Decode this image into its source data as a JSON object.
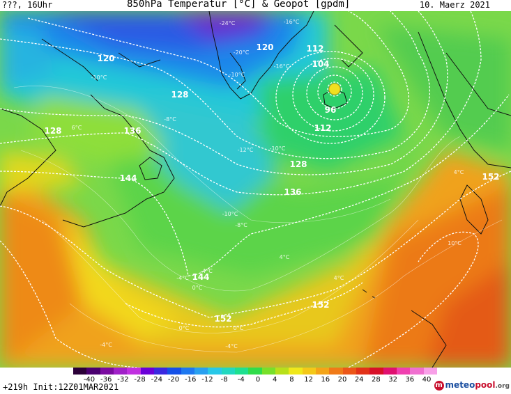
{
  "header": {
    "left": "???, 16Uhr",
    "title": "850hPa Temperatur [°C] & Geopot [gpdm]",
    "date": "10. Maerz 2021"
  },
  "footer": {
    "run_info": "+219h Init:12Z01MAR2021",
    "logo_brand": "meteo",
    "logo_pool": "pool",
    "logo_tld": ".org"
  },
  "colors": {
    "sea_cold": "#2a7fd8",
    "arctic": "#5a2bc8",
    "cool_green": "#3cc84a",
    "warm_orange": "#f09a1a",
    "hot_red": "#e2561a",
    "isohypse": "#ffffff",
    "coastline": "#111111"
  },
  "scale": {
    "labels": [
      "-40",
      "-36",
      "-32",
      "-28",
      "-24",
      "-20",
      "-16",
      "-12",
      "-8",
      "-4",
      "0",
      "4",
      "8",
      "12",
      "16",
      "20",
      "24",
      "28",
      "32",
      "36",
      "40"
    ],
    "colors": [
      "#2b0038",
      "#4a0070",
      "#7a0aa0",
      "#a020c8",
      "#c030e0",
      "#6a00d8",
      "#3a28e0",
      "#1450e8",
      "#1e78f0",
      "#28a0f0",
      "#28c8e8",
      "#22d8c0",
      "#1ee090",
      "#30dc4a",
      "#78e02a",
      "#b8e01a",
      "#f0e81a",
      "#f4c818",
      "#f4a418",
      "#f07a18",
      "#ec5618",
      "#e23218",
      "#d81028",
      "#e01070",
      "#f040b0",
      "#f070d0",
      "#f8a0e8"
    ]
  },
  "map": {
    "geopot_labels": [
      {
        "text": "120"
      },
      {
        "text": "120"
      },
      {
        "text": "112"
      },
      {
        "text": "104"
      },
      {
        "text": "96"
      },
      {
        "text": "128"
      },
      {
        "text": "112"
      },
      {
        "text": "128"
      },
      {
        "text": "136"
      },
      {
        "text": "144"
      },
      {
        "text": "136"
      },
      {
        "text": "128"
      },
      {
        "text": "152"
      },
      {
        "text": "144"
      },
      {
        "text": "152"
      },
      {
        "text": "152"
      }
    ],
    "temp_labels": [
      {
        "text": "-24°C"
      },
      {
        "text": "-16°C"
      },
      {
        "text": "-20°C"
      },
      {
        "text": "-16°C"
      },
      {
        "text": "-10°C"
      },
      {
        "text": "-10°C"
      },
      {
        "text": "-8°C"
      },
      {
        "text": "-12°C"
      },
      {
        "text": "-10°C"
      },
      {
        "text": "-10°C"
      },
      {
        "text": "-8°C"
      },
      {
        "text": "-4°C"
      },
      {
        "text": "-4°C"
      },
      {
        "text": "0°C"
      },
      {
        "text": "0°C"
      },
      {
        "text": "0°C"
      },
      {
        "text": "-4°C"
      },
      {
        "text": "-4°C"
      },
      {
        "text": "4°C"
      },
      {
        "text": "6°C"
      },
      {
        "text": "4°C"
      },
      {
        "text": "4°C"
      },
      {
        "text": "10°C"
      }
    ]
  }
}
